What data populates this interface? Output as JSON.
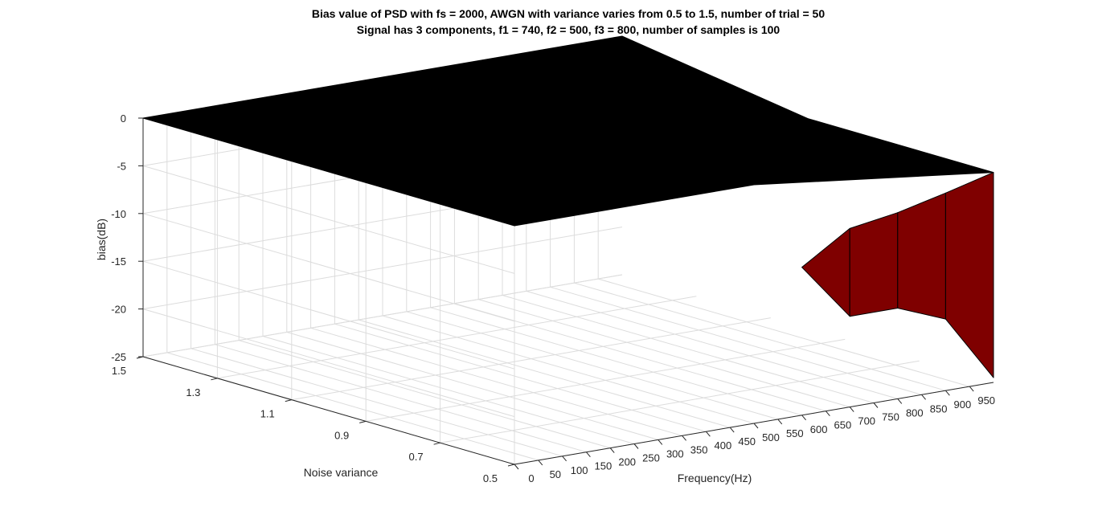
{
  "chart_data": {
    "type": "surface3d",
    "title": [
      "Bias value of PSD with fs = 2000, AWGN with variance varies from 0.5 to 1.5, number of trial = 50",
      "Signal has 3 components, f1 = 740, f2 = 500, f3 = 800, number of samples is 100"
    ],
    "xlabel": "Frequency(Hz)",
    "ylabel": "Noise variance",
    "zlabel": "bias(dB)",
    "x_ticks": [
      "0",
      "50",
      "100",
      "150",
      "200",
      "250",
      "300",
      "350",
      "400",
      "450",
      "500",
      "550",
      "600",
      "650",
      "700",
      "750",
      "800",
      "850",
      "900",
      "950"
    ],
    "y_ticks": [
      "0.5",
      "0.7",
      "0.9",
      "1.1",
      "1.3",
      "1.5"
    ],
    "z_ticks": [
      "0",
      "-5",
      "-10",
      "-15",
      "-20",
      "-25"
    ],
    "xlim": [
      0,
      1000
    ],
    "ylim": [
      0.5,
      1.5
    ],
    "zlim": [
      -25,
      0
    ],
    "grid": true,
    "surface": {
      "frequency": [
        0,
        500,
        1000
      ],
      "noise_variance": [
        0.5,
        1.0,
        1.5
      ],
      "bias_db": [
        [
          0,
          0,
          -3
        ],
        [
          0,
          0,
          -3
        ],
        [
          0,
          0,
          0
        ]
      ],
      "top_color": "#000000",
      "side_color": "#7f0000"
    },
    "side_wall": {
      "edge_frequency": [
        600,
        700,
        800,
        900,
        1000
      ],
      "bias_top": [
        -9.5,
        -6.3,
        -5.5,
        -4.3,
        -3
      ],
      "bias_bottom": [
        -9.5,
        -15.5,
        -15.5,
        -17.5,
        -24.5
      ]
    }
  }
}
